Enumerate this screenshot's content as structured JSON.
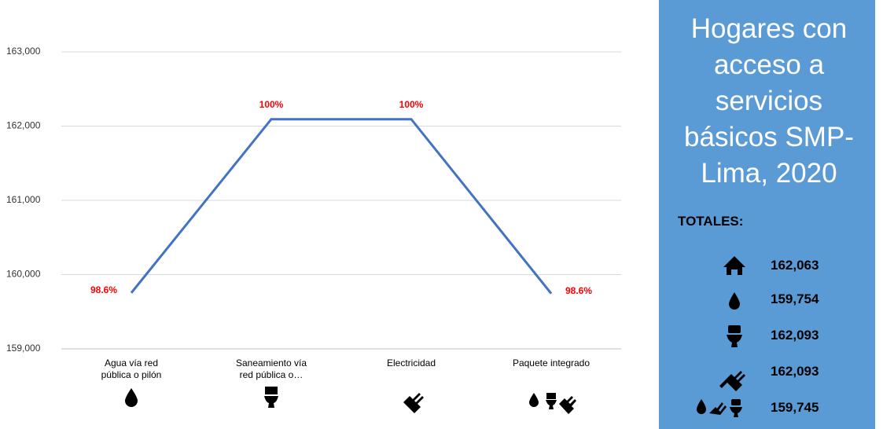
{
  "chart_data": {
    "type": "line",
    "categories": [
      "Agua vía red pública o pilón",
      "Saneamiento vía red pública o…",
      "Electricidad",
      "Paquete integrado"
    ],
    "series": [
      {
        "name": "Hogares",
        "color": "#4472c4",
        "values": [
          159754,
          162093,
          162093,
          159745
        ]
      }
    ],
    "point_labels": [
      "98.6%",
      "100%",
      "100%",
      "98.6%"
    ],
    "point_label_color": "#ff0000",
    "ylim": [
      159000,
      163000
    ],
    "yticks": [
      {
        "value": 159000,
        "label": "159,000"
      },
      {
        "value": 160000,
        "label": "160,000"
      },
      {
        "value": 161000,
        "label": "161,000"
      },
      {
        "value": 162000,
        "label": "162,000"
      },
      {
        "value": 163000,
        "label": "163,000"
      }
    ],
    "grid": true
  },
  "panel": {
    "title": "Hogares con acceso a servicios básicos SMP-Lima, 2020",
    "totals_label": "TOTALES:",
    "totals": [
      "162,063",
      "159,754",
      "162,093",
      "162,093",
      "159,745"
    ]
  }
}
